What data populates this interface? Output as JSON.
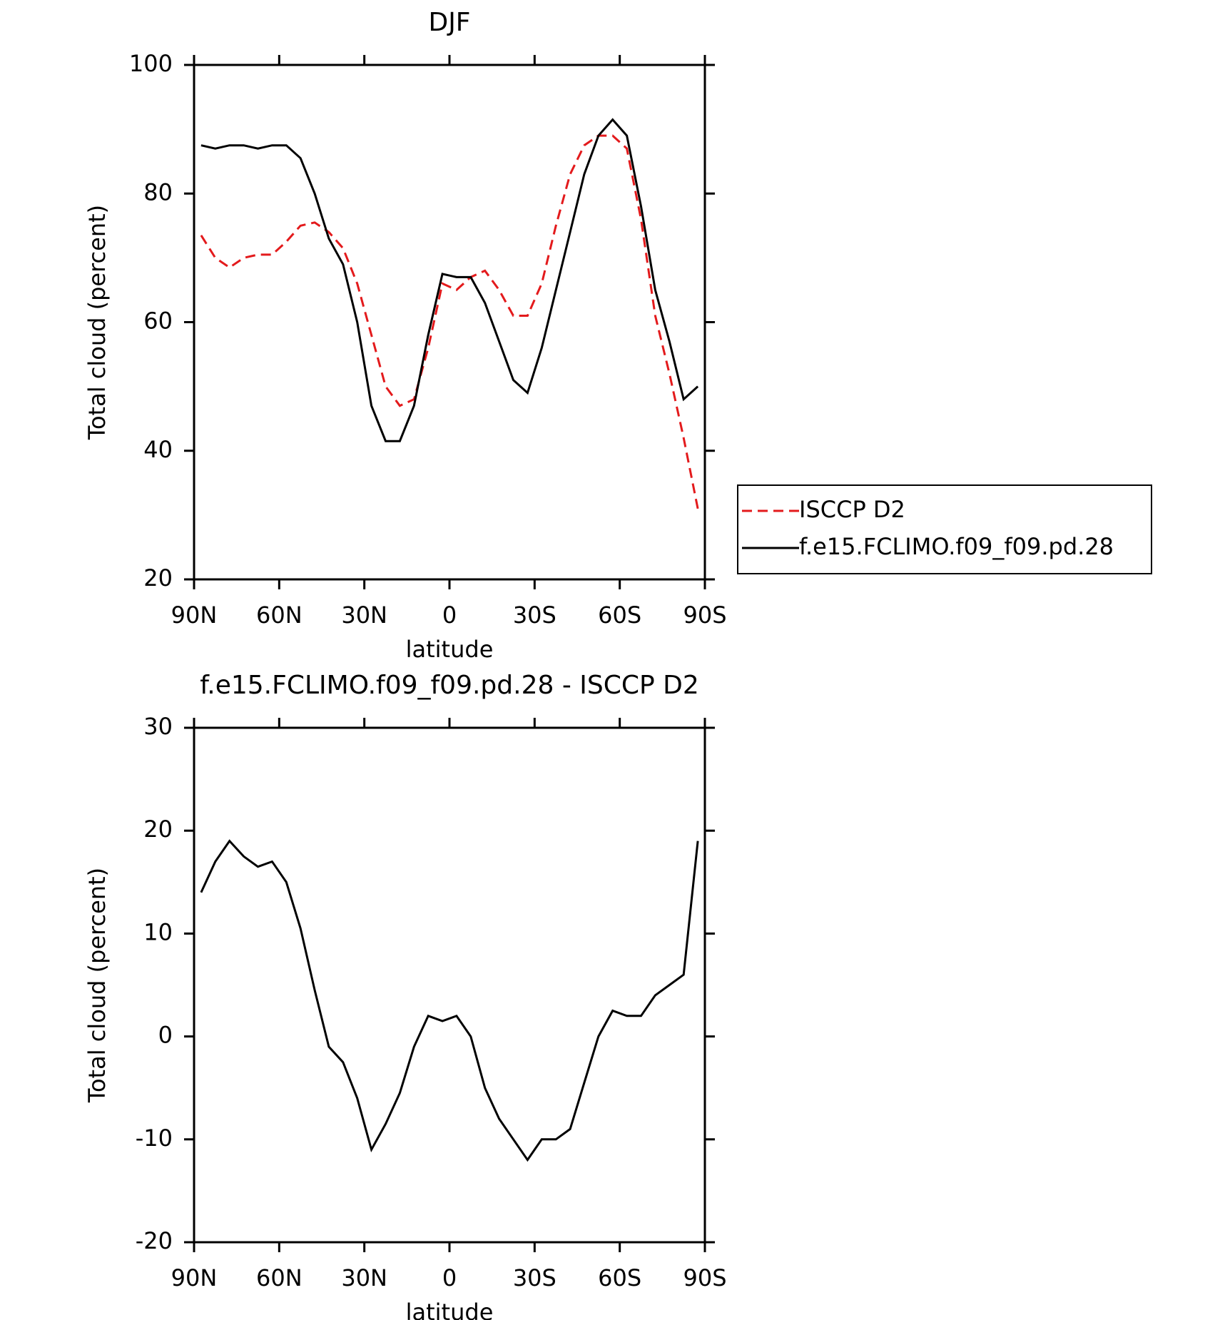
{
  "chart_data": [
    {
      "type": "line",
      "title": "DJF",
      "xlabel": "latitude",
      "ylabel": "Total cloud (percent)",
      "x": [
        87.5,
        82.5,
        77.5,
        72.5,
        67.5,
        62.5,
        57.5,
        52.5,
        47.5,
        42.5,
        37.5,
        32.5,
        27.5,
        22.5,
        17.5,
        12.5,
        7.5,
        2.5,
        -2.5,
        -7.5,
        -12.5,
        -17.5,
        -22.5,
        -27.5,
        -32.5,
        -37.5,
        -42.5,
        -47.5,
        -52.5,
        -57.5,
        -62.5,
        -67.5,
        -72.5,
        -77.5,
        -82.5,
        -87.5
      ],
      "series": [
        {
          "name": "ISCCP D2",
          "color": "#e31a1c",
          "dashed": true,
          "values": [
            73.5,
            70,
            68.5,
            70,
            70.5,
            70.5,
            72.5,
            75,
            75.5,
            74,
            71.5,
            66,
            58,
            50,
            47,
            48,
            56,
            66,
            65,
            67,
            68,
            65,
            61,
            61,
            66,
            75,
            83,
            87.5,
            89,
            89,
            87,
            76,
            61,
            52,
            42,
            31
          ]
        },
        {
          "name": "f.e15.FCLIMO.f09_f09.pd.28",
          "color": "#000000",
          "dashed": false,
          "values": [
            87.5,
            87,
            87.5,
            87.5,
            87,
            87.5,
            87.5,
            85.5,
            80,
            73,
            69,
            60,
            47,
            41.5,
            41.5,
            47,
            58,
            67.5,
            67,
            67,
            63,
            57,
            51,
            49,
            56,
            65,
            74,
            83,
            89,
            91.5,
            89,
            78,
            65,
            57,
            48,
            50
          ]
        }
      ],
      "xlim": [
        90,
        -90
      ],
      "xticks": [
        {
          "value": 90,
          "label": "90N"
        },
        {
          "value": 60,
          "label": "60N"
        },
        {
          "value": 30,
          "label": "30N"
        },
        0,
        {
          "value": -30,
          "label": "30S"
        },
        {
          "value": -60,
          "label": "60S"
        },
        {
          "value": -90,
          "label": "90S"
        }
      ],
      "ylim": [
        20,
        100
      ],
      "yticks": [
        20,
        40,
        60,
        80,
        100
      ],
      "legend": "outside-right"
    },
    {
      "type": "line",
      "title": "f.e15.FCLIMO.f09_f09.pd.28 - ISCCP D2",
      "xlabel": "latitude",
      "ylabel": "Total cloud (percent)",
      "x": [
        87.5,
        82.5,
        77.5,
        72.5,
        67.5,
        62.5,
        57.5,
        52.5,
        47.5,
        42.5,
        37.5,
        32.5,
        27.5,
        22.5,
        17.5,
        12.5,
        7.5,
        2.5,
        -2.5,
        -7.5,
        -12.5,
        -17.5,
        -22.5,
        -27.5,
        -32.5,
        -37.5,
        -42.5,
        -47.5,
        -52.5,
        -57.5,
        -62.5,
        -67.5,
        -72.5,
        -77.5,
        -82.5,
        -87.5
      ],
      "color": "#000000",
      "values": [
        14,
        17,
        19,
        17.5,
        16.5,
        17,
        15,
        10.5,
        4.5,
        -1,
        -2.5,
        -6,
        -11,
        -8.5,
        -5.5,
        -1,
        2,
        1.5,
        2,
        0,
        -5,
        -8,
        -10,
        -12,
        -10,
        -10,
        -9,
        -4.5,
        0,
        2.5,
        2,
        2,
        4,
        5,
        6,
        19
      ],
      "xlim": [
        90,
        -90
      ],
      "xticks": [
        {
          "value": 90,
          "label": "90N"
        },
        {
          "value": 60,
          "label": "60N"
        },
        {
          "value": 30,
          "label": "30N"
        },
        0,
        {
          "value": -30,
          "label": "30S"
        },
        {
          "value": -60,
          "label": "60S"
        },
        {
          "value": -90,
          "label": "90S"
        }
      ],
      "ylim": [
        -20,
        30
      ],
      "yticks": [
        -20,
        -10,
        0,
        10,
        20,
        30
      ]
    }
  ]
}
